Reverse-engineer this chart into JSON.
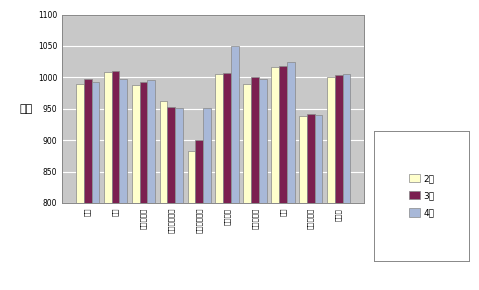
{
  "categories": [
    "食料",
    "住居",
    "光熱・水道",
    "家具・家事用",
    "被服及び履物",
    "保健団費",
    "交通・通信",
    "教育",
    "教養・娱楽",
    "諸雑費"
  ],
  "feb": [
    990,
    1008,
    988,
    963,
    883,
    1005,
    990,
    1017,
    938,
    1001
  ],
  "mar": [
    997,
    1010,
    992,
    952,
    900,
    1007,
    1000,
    1018,
    942,
    1004
  ],
  "apr": [
    993,
    997,
    996,
    951,
    951,
    1050,
    997,
    1025,
    940,
    1005
  ],
  "bar_width": 0.28,
  "ylim": [
    800,
    1100
  ],
  "yticks": [
    800,
    850,
    900,
    950,
    1000,
    1050,
    1100
  ],
  "ylabel": "指数",
  "color_feb": "#FFFFCC",
  "color_mar": "#7B2050",
  "color_apr": "#A8B8D8",
  "legend_feb": "2月",
  "legend_mar": "3月",
  "legend_apr": "4月",
  "bg_color": "#C8C8C8",
  "outer_bg": "#FFFFFF",
  "edge_color": "#888888",
  "white": "#FFFFFF"
}
